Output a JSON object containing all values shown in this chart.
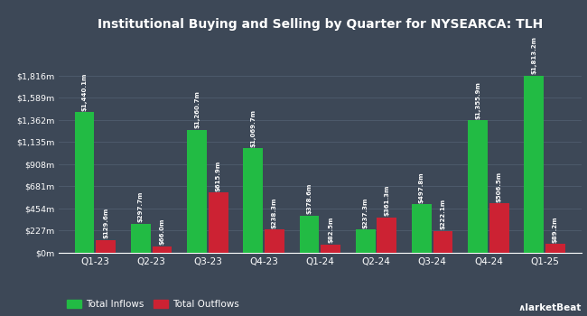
{
  "title": "Institutional Buying and Selling by Quarter for NYSEARCA: TLH",
  "quarters": [
    "Q1-23",
    "Q2-23",
    "Q3-23",
    "Q4-23",
    "Q1-24",
    "Q2-24",
    "Q3-24",
    "Q4-24",
    "Q1-25"
  ],
  "inflows": [
    1440.1,
    297.7,
    1260.7,
    1069.7,
    378.6,
    237.3,
    497.8,
    1355.9,
    1813.2
  ],
  "outflows": [
    129.6,
    66.0,
    615.9,
    238.3,
    82.5,
    361.3,
    222.1,
    506.5,
    89.2
  ],
  "inflow_labels": [
    "$1,440.1m",
    "$297.7m",
    "$1,260.7m",
    "$1,069.7m",
    "$378.6m",
    "$237.3m",
    "$497.8m",
    "$1,355.9m",
    "$1,813.2m"
  ],
  "outflow_labels": [
    "$129.6m",
    "$66.0m",
    "$615.9m",
    "$238.3m",
    "$82.5m",
    "$361.3m",
    "$222.1m",
    "$506.5m",
    "$89.2m"
  ],
  "inflow_color": "#22bb44",
  "outflow_color": "#cc2233",
  "background_color": "#3d4857",
  "grid_color": "#505d6e",
  "text_color": "#ffffff",
  "ytick_labels": [
    "$0m",
    "$227m",
    "$454m",
    "$681m",
    "$908m",
    "$1,135m",
    "$1,362m",
    "$1,589m",
    "$1,816m"
  ],
  "ytick_values": [
    0,
    227,
    454,
    681,
    908,
    1135,
    1362,
    1589,
    1816
  ],
  "ylim": [
    0,
    2200
  ],
  "legend_inflow": "Total Inflows",
  "legend_outflow": "Total Outflows",
  "bar_width": 0.35,
  "bar_gap": 0.03
}
